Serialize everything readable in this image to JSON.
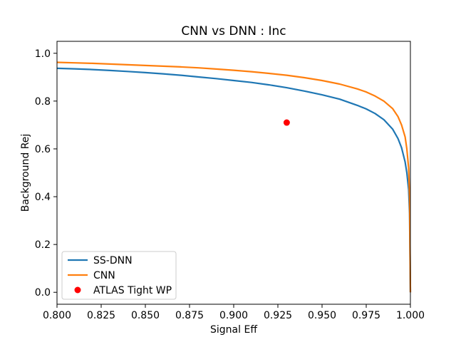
{
  "chart_data": {
    "type": "line",
    "title": "CNN vs DNN : Inc",
    "xlabel": "Signal Eff",
    "ylabel": "Background Rej",
    "xlim": [
      0.8,
      1.0
    ],
    "ylim": [
      -0.05,
      1.05
    ],
    "grid": false,
    "legend_position": "lower-left",
    "x_ticks": [
      0.8,
      0.825,
      0.85,
      0.875,
      0.9,
      0.925,
      0.95,
      0.975,
      1.0
    ],
    "x_tick_labels": [
      "0.800",
      "0.825",
      "0.850",
      "0.875",
      "0.900",
      "0.925",
      "0.950",
      "0.975",
      "1.000"
    ],
    "y_ticks": [
      0.0,
      0.2,
      0.4,
      0.6,
      0.8,
      1.0
    ],
    "y_tick_labels": [
      "0.0",
      "0.2",
      "0.4",
      "0.6",
      "0.8",
      "1.0"
    ],
    "series": [
      {
        "name": "SS-DNN",
        "color": "#1f77b4",
        "style": "line",
        "x": [
          0.8,
          0.81,
          0.82,
          0.83,
          0.84,
          0.85,
          0.86,
          0.87,
          0.88,
          0.89,
          0.9,
          0.91,
          0.92,
          0.93,
          0.94,
          0.95,
          0.96,
          0.97,
          0.975,
          0.98,
          0.985,
          0.99,
          0.993,
          0.995,
          0.997,
          0.998,
          0.999,
          0.9995,
          1.0
        ],
        "y": [
          0.937,
          0.935,
          0.932,
          0.928,
          0.924,
          0.919,
          0.914,
          0.908,
          0.901,
          0.894,
          0.886,
          0.878,
          0.868,
          0.856,
          0.842,
          0.826,
          0.808,
          0.782,
          0.767,
          0.748,
          0.722,
          0.682,
          0.643,
          0.605,
          0.545,
          0.5,
          0.43,
          0.33,
          0.0
        ]
      },
      {
        "name": "CNN",
        "color": "#ff7f0e",
        "style": "line",
        "x": [
          0.8,
          0.81,
          0.82,
          0.83,
          0.84,
          0.85,
          0.86,
          0.87,
          0.88,
          0.89,
          0.9,
          0.91,
          0.92,
          0.93,
          0.94,
          0.95,
          0.96,
          0.97,
          0.975,
          0.98,
          0.985,
          0.99,
          0.993,
          0.995,
          0.997,
          0.998,
          0.999,
          0.9995,
          1.0
        ],
        "y": [
          0.962,
          0.96,
          0.958,
          0.955,
          0.952,
          0.949,
          0.946,
          0.943,
          0.939,
          0.934,
          0.929,
          0.923,
          0.916,
          0.908,
          0.898,
          0.886,
          0.871,
          0.851,
          0.838,
          0.821,
          0.8,
          0.768,
          0.735,
          0.7,
          0.65,
          0.6,
          0.52,
          0.4,
          0.0
        ]
      },
      {
        "name": "ATLAS Tight WP",
        "color": "#ff0000",
        "style": "point",
        "x": [
          0.93
        ],
        "y": [
          0.71
        ]
      }
    ]
  }
}
